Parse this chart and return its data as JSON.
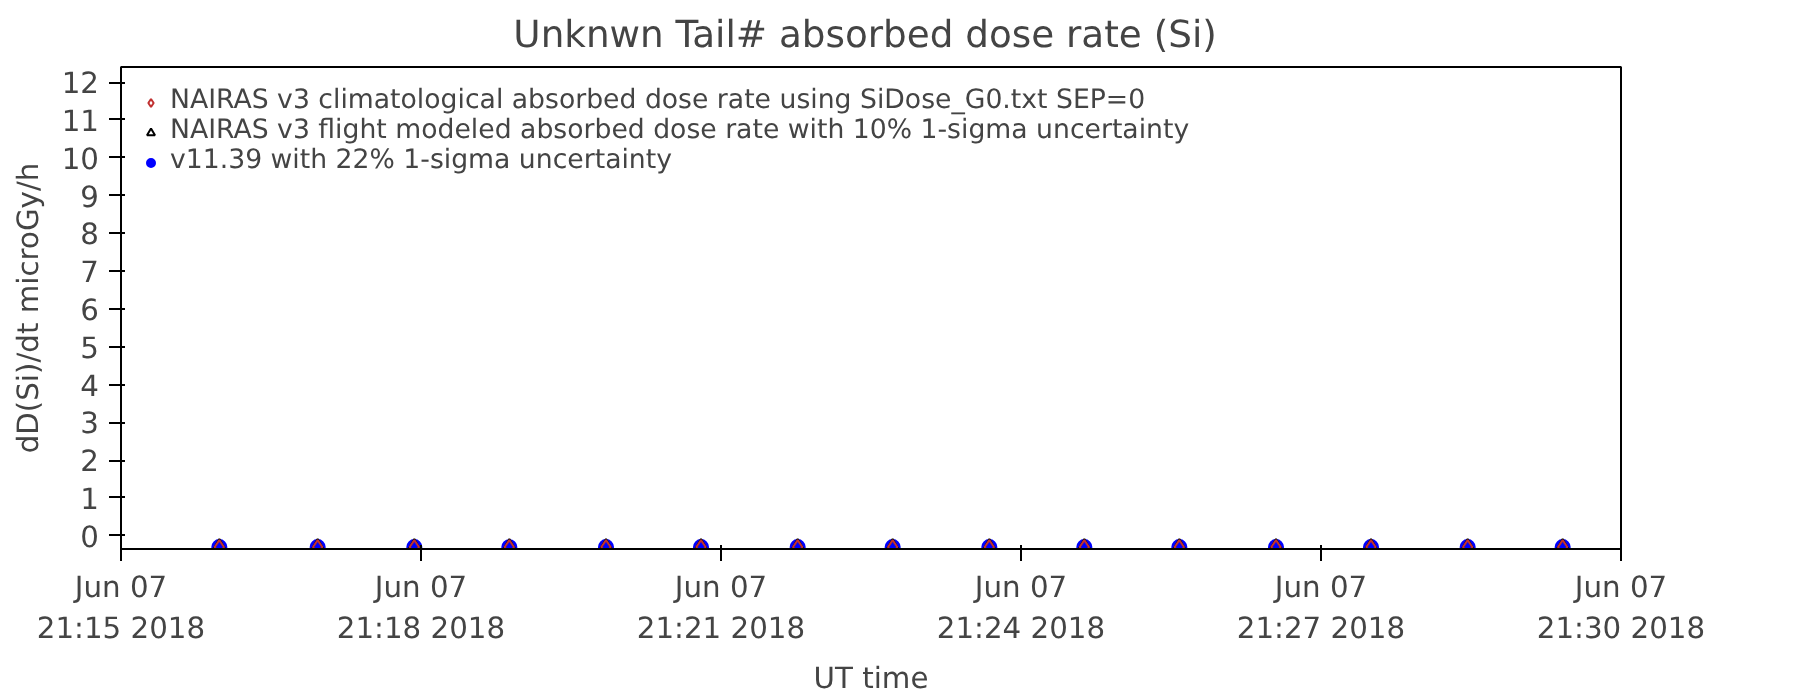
{
  "chart_data": {
    "type": "scatter",
    "title": "Unknwn Tail#  absorbed dose rate (Si)",
    "xlabel": "UT time",
    "ylabel": "dD(Si)/dt microGy/h",
    "x": [
      "2018-06-07T21:15:59",
      "2018-06-07T21:16:58",
      "2018-06-07T21:17:56",
      "2018-06-07T21:18:53",
      "2018-06-07T21:19:51",
      "2018-06-07T21:20:48",
      "2018-06-07T21:21:46",
      "2018-06-07T21:22:43",
      "2018-06-07T21:23:41",
      "2018-06-07T21:24:38",
      "2018-06-07T21:25:35",
      "2018-06-07T21:26:33",
      "2018-06-07T21:27:30",
      "2018-06-07T21:28:28",
      "2018-06-07T21:29:25"
    ],
    "series": [
      {
        "name": "NAIRAS v3 climatological absorbed dose rate using SiDose_G0.txt SEP=0",
        "color": "#c03030",
        "marker": "diamond",
        "values": [
          -0.3,
          -0.3,
          -0.3,
          -0.3,
          -0.3,
          -0.3,
          -0.3,
          -0.3,
          -0.3,
          -0.3,
          -0.3,
          -0.3,
          -0.3,
          -0.3,
          -0.3
        ]
      },
      {
        "name": "NAIRAS v3 flight modeled absorbed dose rate with 10% 1-sigma uncertainty",
        "color": "#000000",
        "marker": "triangle",
        "values": [
          -0.3,
          -0.3,
          -0.3,
          -0.3,
          -0.3,
          -0.3,
          -0.3,
          -0.3,
          -0.3,
          -0.3,
          -0.3,
          -0.3,
          -0.3,
          -0.3,
          -0.3
        ]
      },
      {
        "name": "v11.39 with 22% 1-sigma uncertainty",
        "color": "#0000ff",
        "marker": "circle",
        "values": [
          -0.3,
          -0.3,
          -0.3,
          -0.3,
          -0.3,
          -0.3,
          -0.3,
          -0.3,
          -0.3,
          -0.3,
          -0.3,
          -0.3,
          -0.3,
          -0.3,
          -0.3
        ]
      }
    ],
    "xlim": [
      "2018-06-07T21:15",
      "2018-06-07T21:30"
    ],
    "xticks": [
      {
        "value": "2018-06-07T21:15",
        "label": "Jun 07\n21:15 2018"
      },
      {
        "value": "2018-06-07T21:18",
        "label": "Jun 07\n21:18 2018"
      },
      {
        "value": "2018-06-07T21:21",
        "label": "Jun 07\n21:21 2018"
      },
      {
        "value": "2018-06-07T21:24",
        "label": "Jun 07\n21:24 2018"
      },
      {
        "value": "2018-06-07T21:27",
        "label": "Jun 07\n21:27 2018"
      },
      {
        "value": "2018-06-07T21:30",
        "label": "Jun 07\n21:30 2018"
      }
    ],
    "ylim": [
      -0.35,
      12.4
    ],
    "yticks": [
      0,
      1,
      2,
      3,
      4,
      5,
      6,
      7,
      8,
      9,
      10,
      11,
      12
    ],
    "legend": "top left",
    "grid": false
  }
}
